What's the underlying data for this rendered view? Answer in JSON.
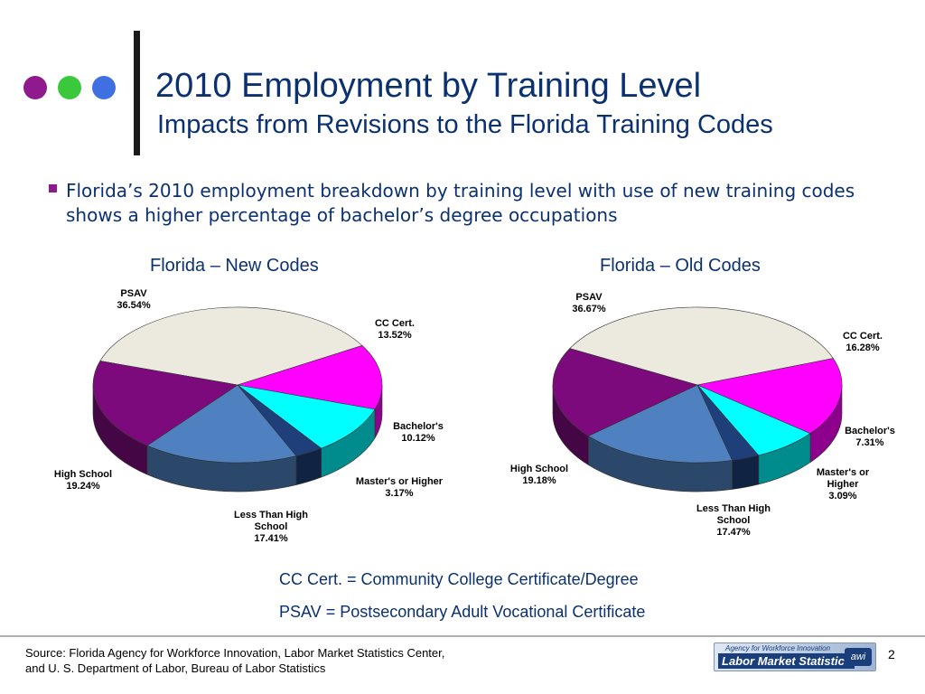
{
  "header": {
    "title": "2010 Employment by Training Level",
    "subtitle": "Impacts from Revisions to the Florida Training Codes",
    "dots": [
      "#8e1a8e",
      "#3cc83c",
      "#3f6fe0"
    ]
  },
  "bullet": "Florida’s 2010 employment breakdown by training level with use of new training codes shows a higher percentage of bachelor’s degree occupations",
  "chart_data": [
    {
      "type": "pie",
      "title": "Florida – New Codes",
      "slices": [
        {
          "label": [
            "PSAV",
            "36.54%"
          ],
          "value": 36.54,
          "color": "#ece9df"
        },
        {
          "label": [
            "CC Cert.",
            "13.52%"
          ],
          "value": 13.52,
          "color": "#ff00ff"
        },
        {
          "label": [
            "Bachelor's",
            "10.12%"
          ],
          "value": 10.12,
          "color": "#00ffff"
        },
        {
          "label": [
            "Master's or Higher",
            "3.17%"
          ],
          "value": 3.17,
          "color": "#1f3f7a"
        },
        {
          "label": [
            "Less Than High",
            "School",
            "17.41%"
          ],
          "value": 17.41,
          "color": "#4f81c0"
        },
        {
          "label": [
            "High School",
            "19.24%"
          ],
          "value": 19.24,
          "color": "#7d0a7d"
        }
      ]
    },
    {
      "type": "pie",
      "title": "Florida – Old Codes",
      "slices": [
        {
          "label": [
            "PSAV",
            "36.67%"
          ],
          "value": 36.67,
          "color": "#ece9df"
        },
        {
          "label": [
            "CC Cert.",
            "16.28%"
          ],
          "value": 16.28,
          "color": "#ff00ff"
        },
        {
          "label": [
            "Bachelor's",
            "7.31%"
          ],
          "value": 7.31,
          "color": "#00ffff"
        },
        {
          "label": [
            "Master's or",
            "Higher",
            "3.09%"
          ],
          "value": 3.09,
          "color": "#1f3f7a"
        },
        {
          "label": [
            "Less Than High",
            "School",
            "17.47%"
          ],
          "value": 17.47,
          "color": "#4f81c0"
        },
        {
          "label": [
            "High School",
            "19.18%"
          ],
          "value": 19.18,
          "color": "#7d0a7d"
        }
      ]
    }
  ],
  "definitions": [
    "CC Cert. = Community College Certificate/Degree",
    "PSAV = Postsecondary Adult Vocational Certificate"
  ],
  "source": [
    "Source: Florida Agency for Workforce Innovation, Labor Market Statistics Center,",
    "and U. S. Department of Labor, Bureau of Labor Statistics"
  ],
  "logo": {
    "top": "Agency for Workforce Innovation",
    "main": "Labor Market Statistics",
    "badge": "awi"
  },
  "page_number": "2"
}
